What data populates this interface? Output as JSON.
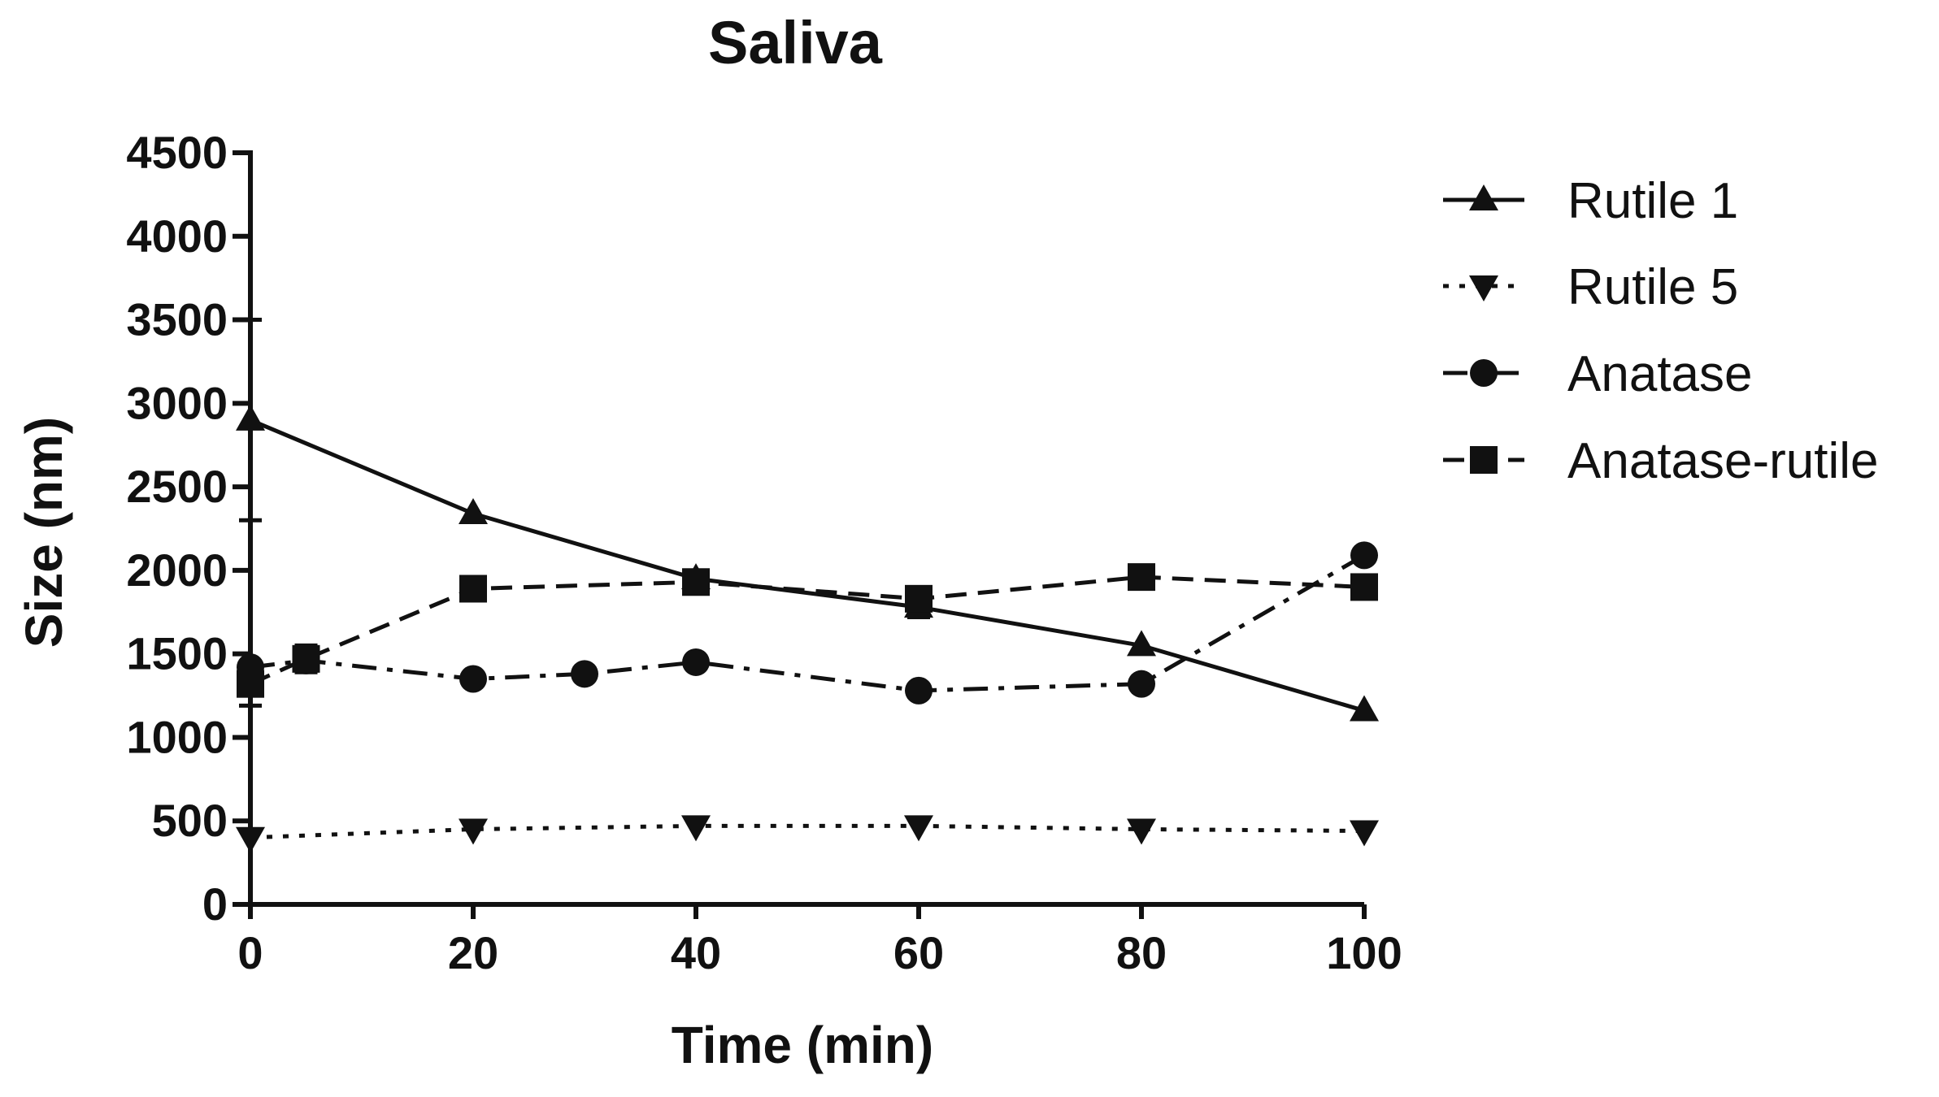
{
  "chart_data": {
    "type": "line",
    "title": "Saliva",
    "xlabel": "Time (min)",
    "ylabel": "Size (nm)",
    "xlim": [
      0,
      100
    ],
    "ylim": [
      0,
      4500
    ],
    "xticks": [
      0,
      20,
      40,
      60,
      80,
      100
    ],
    "yticks": [
      0,
      500,
      1000,
      1500,
      2000,
      2500,
      3000,
      3500,
      4000,
      4500
    ],
    "legend_position": "right",
    "series": [
      {
        "name": "Rutile 1",
        "marker": "triangle-up",
        "dash": "solid",
        "x": [
          0,
          20,
          40,
          60,
          80,
          100
        ],
        "y": [
          2900,
          2340,
          1950,
          1780,
          1550,
          1160
        ],
        "error": [
          600,
          0,
          0,
          60,
          0,
          0
        ]
      },
      {
        "name": "Rutile 5",
        "marker": "triangle-down",
        "dash": "dotted",
        "x": [
          0,
          20,
          40,
          60,
          80,
          100
        ],
        "y": [
          400,
          450,
          470,
          470,
          450,
          440
        ],
        "error": [
          0,
          0,
          0,
          0,
          0,
          0
        ]
      },
      {
        "name": "Anatase",
        "marker": "circle",
        "dash": "dashdot",
        "x": [
          0,
          5,
          20,
          30,
          40,
          60,
          80,
          100
        ],
        "y": [
          1420,
          1460,
          1350,
          1380,
          1450,
          1280,
          1320,
          2090
        ],
        "error": [
          0,
          0,
          0,
          0,
          0,
          0,
          0,
          0
        ]
      },
      {
        "name": "Anatase-rutile",
        "marker": "square",
        "dash": "dashed",
        "x": [
          0,
          5,
          20,
          40,
          60,
          80,
          100
        ],
        "y": [
          1320,
          1470,
          1890,
          1930,
          1830,
          1960,
          1900
        ],
        "error": [
          130,
          80,
          0,
          0,
          0,
          0,
          0
        ]
      }
    ]
  }
}
